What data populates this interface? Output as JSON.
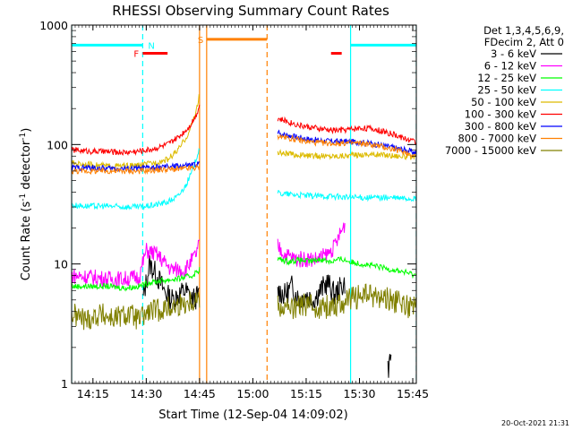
{
  "chart_data": {
    "type": "line",
    "title": "RHESSI Observing Summary Count Rates",
    "xlabel": "Start Time (12-Sep-04 14:09:02)",
    "ylabel_main": "Count Rate (s",
    "ylabel_sup1": "-1",
    "ylabel_mid": " detector",
    "ylabel_sup2": "-1",
    "ylabel_end": ")",
    "yscale": "log",
    "ylim": [
      1,
      1000
    ],
    "xlim_minutes": [
      0,
      97
    ],
    "x_ticks": [
      {
        "min": 6,
        "label": "14:15"
      },
      {
        "min": 21,
        "label": "14:30"
      },
      {
        "min": 36,
        "label": "14:45"
      },
      {
        "min": 51,
        "label": "15:00"
      },
      {
        "min": 66,
        "label": "15:15"
      },
      {
        "min": 81,
        "label": "15:30"
      },
      {
        "min": 96,
        "label": "15:45"
      }
    ],
    "y_ticks": [
      {
        "value": 1,
        "label": "1"
      },
      {
        "value": 10,
        "label": "10"
      },
      {
        "value": 100,
        "label": "100"
      },
      {
        "value": 1000,
        "label": "1000"
      }
    ],
    "legend_header": [
      "Det 1,3,4,5,6,9,",
      "FDecim 2, Att 0"
    ],
    "series": [
      {
        "name": "3 - 6 keV",
        "color": "#000000",
        "segments": [
          {
            "x": [
              20,
              22,
              24,
              26,
              28,
              30,
              32,
              34,
              36
            ],
            "y": [
              5,
              10,
              8,
              6,
              5,
              5.5,
              6,
              5,
              5.5
            ]
          },
          {
            "x": [
              58,
              60,
              62,
              64,
              66,
              68,
              70,
              72,
              74,
              76,
              77
            ],
            "y": [
              6,
              5.5,
              6.5,
              5,
              5.5,
              5,
              6,
              7,
              5.5,
              6.5,
              7
            ]
          },
          {
            "x": [
              89,
              90
            ],
            "y": [
              1.3,
              1.8
            ]
          }
        ]
      },
      {
        "name": "6 - 12 keV",
        "color": "#ff00ff",
        "segments": [
          {
            "x": [
              0,
              5,
              10,
              15,
              19,
              21,
              24,
              28,
              32,
              35,
              36
            ],
            "y": [
              8,
              7.8,
              7.5,
              7.5,
              7.8,
              13,
              12,
              9,
              9,
              12,
              15
            ]
          },
          {
            "x": [
              58,
              60,
              63,
              66,
              69,
              72,
              74,
              76,
              77
            ],
            "y": [
              14,
              12,
              11,
              11,
              11,
              12,
              14,
              19,
              22
            ]
          }
        ]
      },
      {
        "name": "12 - 25 keV",
        "color": "#00ff00",
        "segments": [
          {
            "x": [
              0,
              5,
              10,
              15,
              19,
              22,
              26,
              30,
              34,
              36
            ],
            "y": [
              6.5,
              6.5,
              6.5,
              6.3,
              6.5,
              7,
              7.3,
              7.5,
              8,
              9
            ]
          },
          {
            "x": [
              58,
              61,
              64,
              67,
              70,
              73,
              76,
              79,
              82,
              86,
              90,
              94,
              97
            ],
            "y": [
              11,
              10.5,
              10.8,
              10.5,
              11,
              10.5,
              11,
              10.3,
              10,
              9.5,
              9,
              8.5,
              8
            ]
          }
        ]
      },
      {
        "name": "25 - 50 keV",
        "color": "#00ffff",
        "segments": [
          {
            "x": [
              0,
              5,
              10,
              15,
              19,
              23,
              27,
              30,
              32,
              34,
              36
            ],
            "y": [
              31,
              30.5,
              30.5,
              30,
              30,
              31,
              33,
              37,
              45,
              60,
              95
            ]
          },
          {
            "x": [
              58,
              63,
              68,
              73,
              78,
              83,
              88,
              93,
              97
            ],
            "y": [
              39,
              38,
              37,
              37,
              36,
              36,
              36,
              35.5,
              35
            ]
          }
        ]
      },
      {
        "name": "50 - 100 keV",
        "color": "#ddbb00",
        "segments": [
          {
            "x": [
              0,
              5,
              10,
              15,
              19,
              23,
              27,
              30,
              33,
              35,
              36
            ],
            "y": [
              70,
              68,
              66,
              66,
              67,
              70,
              75,
              90,
              125,
              190,
              260
            ]
          },
          {
            "x": [
              58,
              63,
              68,
              73,
              78,
              83,
              88,
              93,
              97
            ],
            "y": [
              85,
              82,
              80,
              80,
              81,
              83,
              82,
              80,
              77
            ]
          }
        ]
      },
      {
        "name": "100 - 300 keV",
        "color": "#ff0000",
        "segments": [
          {
            "x": [
              0,
              5,
              10,
              15,
              19,
              23,
              27,
              30,
              33,
              35,
              36
            ],
            "y": [
              90,
              88,
              87,
              86,
              88,
              92,
              100,
              115,
              140,
              175,
              215
            ]
          },
          {
            "x": [
              58,
              61,
              64,
              67,
              70,
              73,
              76,
              79,
              82,
              85,
              88,
              91,
              94,
              97
            ],
            "y": [
              165,
              155,
              145,
              140,
              135,
              132,
              132,
              135,
              138,
              135,
              128,
              120,
              112,
              105
            ]
          }
        ]
      },
      {
        "name": "300 - 800 keV",
        "color": "#0000ff",
        "segments": [
          {
            "x": [
              0,
              5,
              10,
              15,
              19,
              23,
              27,
              30,
              33,
              35,
              36
            ],
            "y": [
              64,
              64,
              63,
              63,
              63,
              64,
              65,
              66,
              67,
              68,
              70
            ]
          },
          {
            "x": [
              58,
              62,
              66,
              70,
              74,
              78,
              82,
              86,
              90,
              94,
              97
            ],
            "y": [
              125,
              118,
              112,
              108,
              106,
              106,
              104,
              100,
              95,
              90,
              85
            ]
          }
        ]
      },
      {
        "name": "800 - 7000 keV",
        "color": "#ff8000",
        "segments": [
          {
            "x": [
              0,
              5,
              10,
              15,
              19,
              23,
              27,
              30,
              33,
              36
            ],
            "y": [
              60,
              60,
              60,
              60,
              60,
              61,
              62,
              62,
              63,
              64
            ]
          },
          {
            "x": [
              58,
              62,
              66,
              70,
              74,
              78,
              82,
              86,
              90,
              94,
              97
            ],
            "y": [
              118,
              112,
              106,
              103,
              102,
              103,
              102,
              98,
              92,
              86,
              80
            ]
          }
        ]
      },
      {
        "name": "7000 - 15000 keV",
        "color": "#808000",
        "segments": [
          {
            "x": [
              0,
              4,
              8,
              12,
              16,
              19,
              22,
              26,
              30,
              34,
              36
            ],
            "y": [
              3.8,
              3.4,
              3.8,
              3.5,
              3.8,
              3.4,
              4,
              4.2,
              4.5,
              5,
              5.2
            ]
          },
          {
            "x": [
              58,
              62,
              66,
              70,
              74,
              78,
              82,
              86,
              90,
              94,
              97
            ],
            "y": [
              4.5,
              4.2,
              4.6,
              4.3,
              4.5,
              5,
              5.5,
              5.3,
              5,
              4.5,
              4.2
            ]
          }
        ]
      }
    ],
    "markers": [
      {
        "label": "",
        "color": "#00ffff",
        "dashed": false,
        "x_start": 0,
        "x_end": 20,
        "y": 680
      },
      {
        "label": "N",
        "color": "#00ffff",
        "dashed": false,
        "x_start": 20,
        "x_end": 20,
        "y": 680
      },
      {
        "label": "F",
        "color": "#ff0000",
        "dashed": false,
        "x_start": 20,
        "x_end": 27,
        "y": 580
      },
      {
        "label": "S",
        "color": "#ff8000",
        "dashed": false,
        "x_start": 38,
        "x_end": 55,
        "y": 760
      },
      {
        "label": "",
        "color": "#ff0000",
        "dashed": false,
        "x_start": 73,
        "x_end": 76,
        "y": 580
      },
      {
        "label": "",
        "color": "#00ffff",
        "dashed": false,
        "x_start": 78.5,
        "x_end": 97,
        "y": 680
      }
    ],
    "vertical_lines": [
      {
        "x": 0,
        "color": "#00ffff",
        "dashed": false
      },
      {
        "x": 20,
        "color": "#00ffff",
        "dashed": true
      },
      {
        "x": 36,
        "color": "#ff8000",
        "dashed": false
      },
      {
        "x": 38,
        "color": "#ff8000",
        "dashed": false
      },
      {
        "x": 55,
        "color": "#ff8000",
        "dashed": true
      },
      {
        "x": 78.5,
        "color": "#00ffff",
        "dashed": false
      },
      {
        "x": 97,
        "color": "#00ffff",
        "dashed": true
      }
    ]
  },
  "footer_timestamp": "20-Oct-2021 21:31"
}
